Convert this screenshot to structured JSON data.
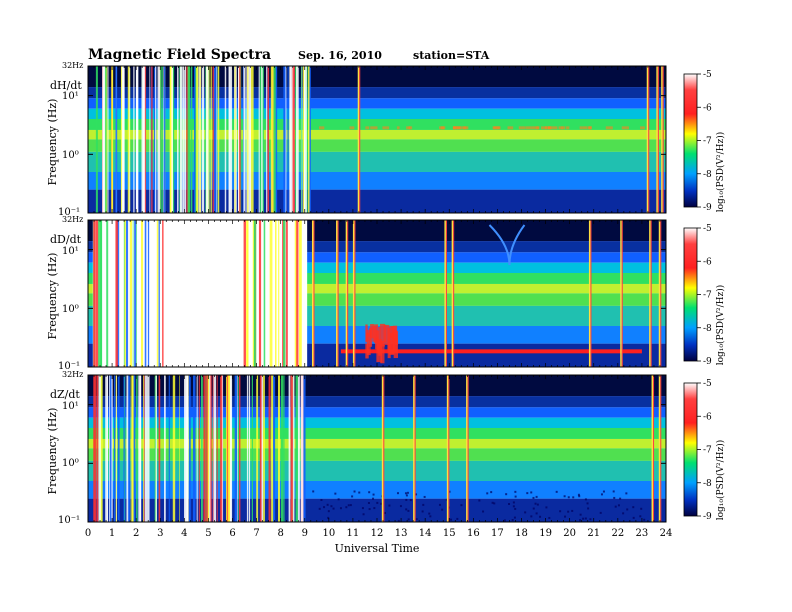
{
  "header": {
    "title": "Magnetic Field Spectra",
    "date": "Sep. 16, 2010",
    "station": "station=STA"
  },
  "xaxis": {
    "label": "Universal Time",
    "ticks": [
      "0",
      "1",
      "2",
      "3",
      "4",
      "5",
      "6",
      "7",
      "8",
      "9",
      "10",
      "11",
      "12",
      "13",
      "14",
      "15",
      "16",
      "17",
      "18",
      "19",
      "20",
      "21",
      "22",
      "23",
      "24"
    ]
  },
  "yaxis": {
    "label": "Frequency (Hz)",
    "top_label": "32Hz",
    "tick_labels": [
      "10¹",
      "10⁰",
      "10⁻¹"
    ]
  },
  "colorbar": {
    "label": "log₁₀(PSD(V²/Hz))",
    "ticks": [
      "-5",
      "-6",
      "-7",
      "-8",
      "-9"
    ],
    "colors": [
      "#ffffff",
      "#ff3030",
      "#ffff00",
      "#00e070",
      "#0050ff",
      "#000050"
    ]
  },
  "chart_data": [
    {
      "type": "heatmap",
      "panel_label": "dH/dt",
      "x_range_hours": [
        0,
        24
      ],
      "y_range_hz": [
        0.1,
        32
      ],
      "y_scale": "log",
      "color_range_log10": [
        -9,
        -5
      ],
      "features": {
        "noisy_interval_hours": [
          0.2,
          9.2
        ],
        "band_peak_hz": 2.5,
        "dark_upper_band_hz": [
          12,
          32
        ],
        "spikes_hours": [
          11.2,
          23.2,
          23.6,
          23.8
        ]
      }
    },
    {
      "type": "heatmap",
      "panel_label": "dD/dt",
      "x_range_hours": [
        0,
        24
      ],
      "y_range_hz": [
        0.1,
        32
      ],
      "y_scale": "log",
      "color_range_log10": [
        -9,
        -5
      ],
      "features": {
        "saturated_interval_hours": [
          0.2,
          9.1
        ],
        "red_low_freq_band_hours": [
          10.5,
          23
        ],
        "red_patches_hours": [
          11.5,
          12.8
        ],
        "whistler_arc_hour": 17.5,
        "spikes_hours": [
          9.3,
          10.3,
          10.7,
          11,
          14.8,
          15.1,
          20.8,
          22.1,
          23.3,
          23.7
        ]
      }
    },
    {
      "type": "heatmap",
      "panel_label": "dZ/dt",
      "x_range_hours": [
        0,
        24
      ],
      "y_range_hz": [
        0.1,
        32
      ],
      "y_scale": "log",
      "color_range_log10": [
        -9,
        -5
      ],
      "features": {
        "noisy_interval_hours": [
          0.2,
          9.2
        ],
        "spikes_hours": [
          12.2,
          13.5,
          14.9,
          15.7,
          23.4,
          23.7
        ]
      }
    }
  ]
}
